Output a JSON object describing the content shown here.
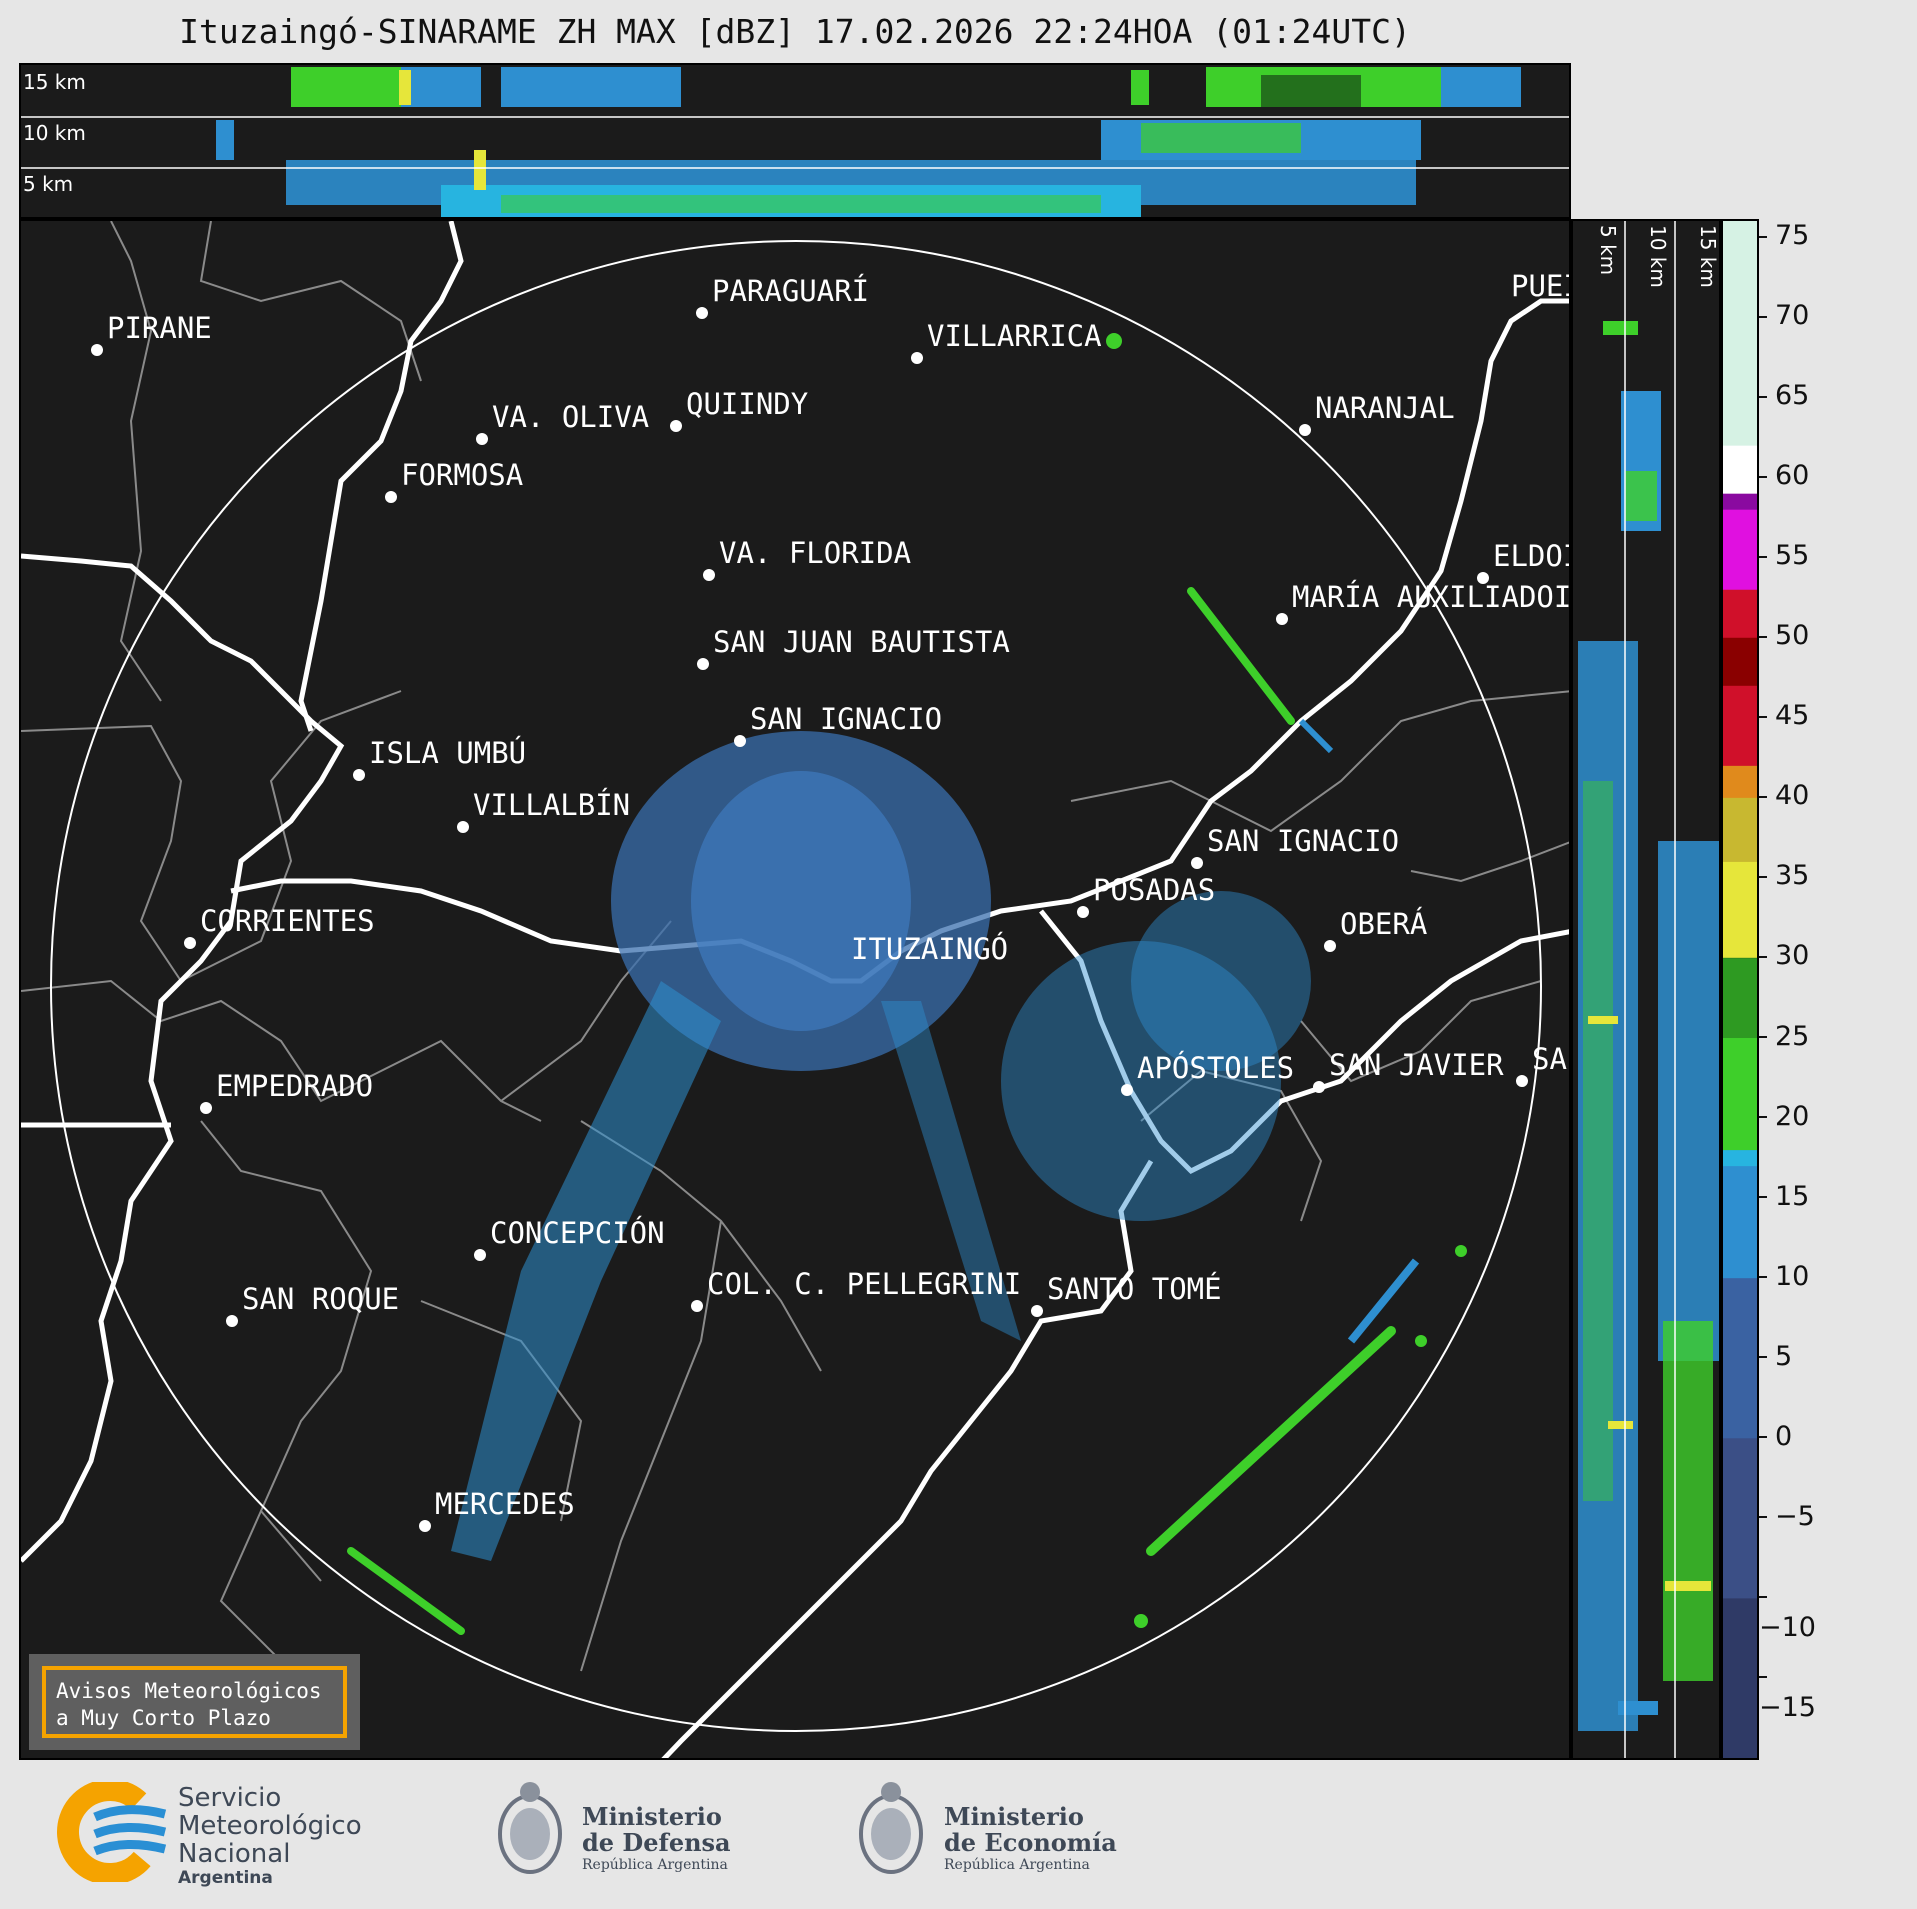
{
  "title": "Ituzaingó-SINARAME ZH MAX [dBZ] 17.02.2026 22:24HOA (01:24UTC)",
  "top_panel": {
    "alt_labels": [
      "15 km",
      "10 km",
      "5 km"
    ]
  },
  "right_panel": {
    "alt_labels": [
      "5 km",
      "10 km",
      "15 km"
    ]
  },
  "map": {
    "radar_site": "ITUZAINGÓ",
    "cities": [
      {
        "name": "PIRANE"
      },
      {
        "name": "PARAGUARÍ"
      },
      {
        "name": "VILLARRICA"
      },
      {
        "name": "PUEI"
      },
      {
        "name": "QUIINDY"
      },
      {
        "name": "VA. OLIVA"
      },
      {
        "name": "NARANJAL"
      },
      {
        "name": "FORMOSA"
      },
      {
        "name": "VA. FLORIDA"
      },
      {
        "name": "ELDOI"
      },
      {
        "name": "MARÍA AUXILIADOI"
      },
      {
        "name": "SAN JUAN BAUTISTA"
      },
      {
        "name": "SAN IGNACIO"
      },
      {
        "name": "ISLA UMBÚ"
      },
      {
        "name": "VILLALBÍN"
      },
      {
        "name": "SAN IGNACIO"
      },
      {
        "name": "POSADAS"
      },
      {
        "name": "CORRIENTES"
      },
      {
        "name": "OBERÁ"
      },
      {
        "name": "ITUZAINGÓ"
      },
      {
        "name": "EMPEDRADO"
      },
      {
        "name": "APÓSTOLES"
      },
      {
        "name": "SAN JAVIER"
      },
      {
        "name": "SAI"
      },
      {
        "name": "CONCEPCIÓN"
      },
      {
        "name": "COL. C. PELLEGRINI"
      },
      {
        "name": "SANTO TOMÉ"
      },
      {
        "name": "SAN ROQUE"
      },
      {
        "name": "MERCEDES"
      }
    ]
  },
  "warning": {
    "line1": "Avisos Meteorológicos",
    "line2": "a Muy Corto Plazo"
  },
  "colorbar": {
    "unit": "dBZ",
    "range": [
      -20,
      76
    ],
    "tick_labels": [
      "75",
      "70",
      "65",
      "60",
      "55",
      "50",
      "45",
      "40",
      "35",
      "30",
      "25",
      "20",
      "15",
      "10",
      "5",
      "0",
      "−5",
      "−10",
      "−15"
    ],
    "tick_values": [
      75,
      70,
      65,
      60,
      55,
      50,
      45,
      40,
      35,
      30,
      25,
      20,
      15,
      10,
      5,
      0,
      -5,
      -10,
      -15
    ],
    "colors": {
      "low": "#2f3a66",
      "blue": "#2e8fd0",
      "cyan": "#27b4e0",
      "green": "#3ecf2a",
      "dark_green": "#23701c",
      "yellow": "#e6e63a",
      "orange": "#e08a1c",
      "red": "#d0102a",
      "dark_red": "#8a0000",
      "magenta": "#e010e0",
      "purple": "#8a0aa0",
      "white": "#ffffff",
      "mint": "#8ee0c0"
    }
  },
  "footer": {
    "smn": [
      "Servicio",
      "Meteorológico",
      "Nacional",
      "Argentina"
    ],
    "defensa": [
      "Ministerio",
      "de Defensa",
      "República Argentina"
    ],
    "economia": [
      "Ministerio",
      "de Economía",
      "República Argentina"
    ]
  }
}
